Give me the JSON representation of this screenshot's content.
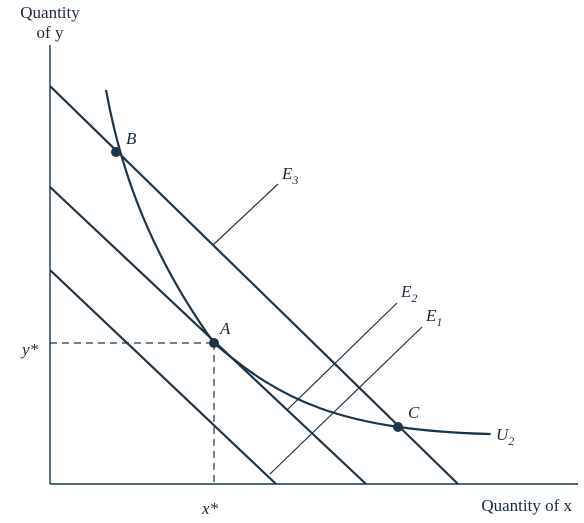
{
  "axes": {
    "y_label_line1": "Quantity",
    "y_label_line2": "of y",
    "x_label": "Quantity of x"
  },
  "ticks": {
    "x_star": "x*",
    "y_star": "y*"
  },
  "points": {
    "A": "A",
    "B": "B",
    "C": "C"
  },
  "lines": {
    "E1": {
      "main": "E",
      "sub": "1"
    },
    "E2": {
      "main": "E",
      "sub": "2"
    },
    "E3": {
      "main": "E",
      "sub": "3"
    },
    "U2": {
      "main": "U",
      "sub": "2"
    }
  },
  "colors": {
    "ink": "#1e3547"
  }
}
